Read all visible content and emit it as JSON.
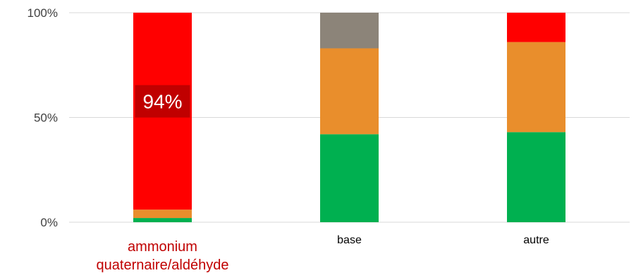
{
  "chart_data": {
    "type": "bar",
    "stacked": true,
    "categories": [
      "ammonium quaternaire/aldéhyde",
      "base",
      "autre"
    ],
    "category_label_lines": [
      [
        "ammonium",
        "quaternaire/aldéhyde"
      ],
      [
        "base"
      ],
      [
        "autre"
      ]
    ],
    "highlighted_category_index": 0,
    "highlight_color": "#C00000",
    "series": [
      {
        "color": "#00B050",
        "values": [
          2,
          42,
          43
        ]
      },
      {
        "color": "#E98E2C",
        "values": [
          4,
          41,
          43
        ]
      },
      {
        "color": "#FF0000",
        "values": [
          94,
          0,
          14
        ]
      },
      {
        "color": "#8C8479",
        "values": [
          0,
          17,
          0
        ]
      }
    ],
    "data_labels": [
      {
        "category_index": 0,
        "series_index": 2,
        "text": "94%"
      }
    ],
    "data_label_background": "#C00000",
    "ylim": [
      0,
      100
    ],
    "y_ticks": [
      "0%",
      "50%",
      "100%"
    ],
    "y_tick_values": [
      0,
      50,
      100
    ],
    "grid": true,
    "grid_color": "#D9D9D9",
    "text_color": "#404040"
  }
}
